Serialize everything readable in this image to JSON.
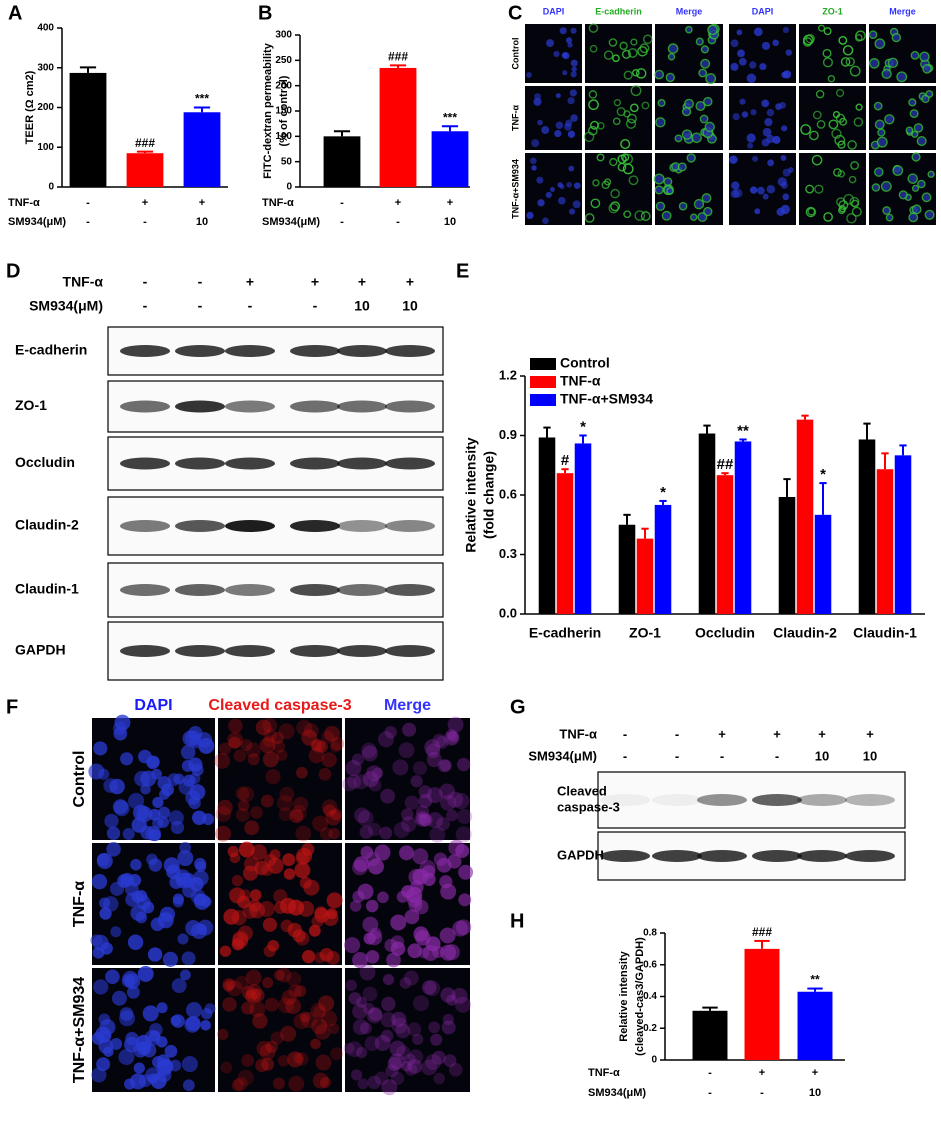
{
  "chart_data": [
    {
      "type": "bar",
      "panel": "A",
      "ylabel": [
        "TEER (Ω cm2)"
      ],
      "ylim": [
        0,
        400
      ],
      "yticks": [
        0,
        100,
        200,
        300,
        400
      ],
      "values": [
        287,
        85,
        188
      ],
      "errors": [
        14,
        4,
        12
      ],
      "colors": [
        "#000000",
        "#ff0000",
        "#0000ff"
      ],
      "annotations": [
        null,
        "###",
        "***"
      ],
      "treatments": [
        {
          "name": "TNF-α",
          "values": [
            "-",
            "+",
            "+"
          ]
        },
        {
          "name": "SM934(μM)",
          "values": [
            "-",
            "-",
            "10"
          ]
        }
      ]
    },
    {
      "type": "bar",
      "panel": "B",
      "ylabel": [
        "FITC-dextran permeability",
        "(% of control)"
      ],
      "ylim": [
        0,
        300
      ],
      "yticks": [
        0,
        50,
        100,
        150,
        200,
        250,
        300
      ],
      "values": [
        100,
        235,
        110
      ],
      "errors": [
        10,
        5,
        10
      ],
      "colors": [
        "#000000",
        "#ff0000",
        "#0000ff"
      ],
      "annotations": [
        null,
        "###",
        "***"
      ],
      "treatments": [
        {
          "name": "TNF-α",
          "values": [
            "-",
            "+",
            "+"
          ]
        },
        {
          "name": "SM934(μM)",
          "values": [
            "-",
            "-",
            "10"
          ]
        }
      ]
    },
    {
      "type": "bar",
      "panel": "E",
      "ylabel": [
        "Relative intensity",
        "(fold change)"
      ],
      "ylim": [
        0,
        1.2
      ],
      "yticks": [
        {
          "value": 0,
          "label": "0.0"
        },
        0.3,
        0.6,
        0.9,
        1.2
      ],
      "categories": [
        "E-cadherin",
        "ZO-1",
        "Occludin",
        "Claudin-2",
        "Claudin-1"
      ],
      "series": [
        {
          "name": "Control",
          "color": "#000000",
          "values": [
            0.89,
            0.45,
            0.91,
            0.59,
            0.88
          ],
          "errors": [
            0.05,
            0.05,
            0.04,
            0.09,
            0.08
          ],
          "annotations": [
            null,
            null,
            null,
            null,
            null
          ]
        },
        {
          "name": "TNF-α",
          "color": "#ff0000",
          "values": [
            0.71,
            0.38,
            0.7,
            0.98,
            0.73
          ],
          "errors": [
            0.02,
            0.05,
            0.01,
            0.02,
            0.08
          ],
          "annotations": [
            "#",
            null,
            "##",
            null,
            null
          ]
        },
        {
          "name": "TNF-α+SM934",
          "color": "#0000ff",
          "values": [
            0.86,
            0.55,
            0.87,
            0.5,
            0.8
          ],
          "errors": [
            0.04,
            0.02,
            0.01,
            0.16,
            0.05
          ],
          "annotations": [
            "*",
            "*",
            "**",
            "*",
            null
          ]
        }
      ]
    },
    {
      "type": "bar",
      "panel": "H",
      "ylabel": [
        "Relative intensity",
        "(cleaved-cas3/GAPDH)"
      ],
      "ylim": [
        0,
        0.8
      ],
      "yticks": [
        0,
        0.2,
        0.4,
        0.6,
        0.8
      ],
      "values": [
        0.31,
        0.7,
        0.43
      ],
      "errors": [
        0.02,
        0.05,
        0.02
      ],
      "colors": [
        "#000000",
        "#ff0000",
        "#0000ff"
      ],
      "annotations": [
        null,
        "###",
        "**"
      ],
      "treatments": [
        {
          "name": "TNF-α",
          "values": [
            "-",
            "+",
            "+"
          ]
        },
        {
          "name": "SM934(μM)",
          "values": [
            "-",
            "-",
            "10"
          ]
        }
      ]
    }
  ],
  "panel_C": {
    "letter": "C",
    "columns": [
      "DAPI",
      "E-cadherin",
      "Merge",
      "DAPI",
      "ZO-1",
      "Merge"
    ],
    "column_colors": [
      "#3333ff",
      "#22aa22",
      "#3333ff",
      "#3333ff",
      "#22aa22",
      "#3333ff"
    ],
    "rows": [
      "Control",
      "TNF-α",
      "TNF-α+SM934"
    ]
  },
  "panel_D": {
    "letter": "D",
    "treatments": [
      {
        "name": "TNF-α",
        "values": [
          "-",
          "-",
          "+",
          "+",
          "+",
          "+"
        ]
      },
      {
        "name": "SM934(μM)",
        "values": [
          "-",
          "-",
          "-",
          "-",
          "10",
          "10"
        ]
      }
    ],
    "bands": [
      [
        "E-cadherin"
      ],
      [
        "ZO-1"
      ],
      [
        "Occludin"
      ],
      [
        "Claudin-2"
      ],
      [
        "Claudin-1"
      ],
      [
        "GAPDH"
      ]
    ]
  },
  "panel_F": {
    "letter": "F",
    "columns": [
      "DAPI",
      "Cleaved caspase-3",
      "Merge"
    ],
    "column_colors": [
      "#1a1aff",
      "#e81a1a",
      "#3333ff"
    ],
    "rows": [
      "Control",
      "TNF-α",
      "TNF-α+SM934"
    ]
  },
  "panel_G": {
    "letter": "G",
    "treatments": [
      {
        "name": "TNF-α",
        "values": [
          "-",
          "-",
          "+",
          "+",
          "+",
          "+"
        ]
      },
      {
        "name": "SM934(μM)",
        "values": [
          "-",
          "-",
          "-",
          "-",
          "10",
          "10"
        ]
      }
    ],
    "bands": [
      [
        "Cleaved",
        "caspase-3"
      ],
      [
        "GAPDH"
      ]
    ]
  }
}
